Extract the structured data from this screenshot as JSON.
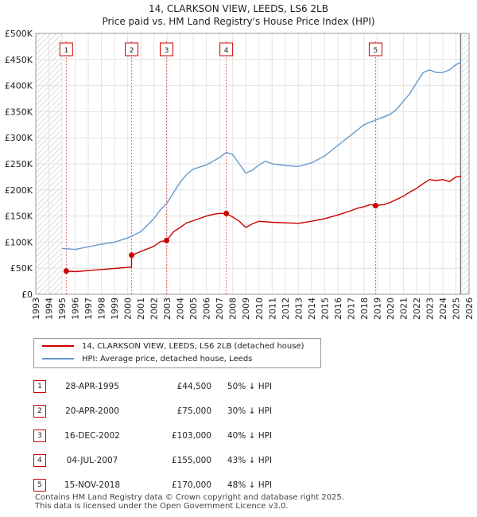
{
  "header": {
    "title": "14, CLARKSON VIEW, LEEDS, LS6 2LB",
    "subtitle": "Price paid vs. HM Land Registry's House Price Index (HPI)"
  },
  "colors": {
    "property": "#cc0000",
    "hpi": "#6699cc",
    "hatch": "#bbbbbb",
    "band": "#e8eef6"
  },
  "chart_data": {
    "type": "line",
    "title": "14, CLARKSON VIEW, LEEDS, LS6 2LB",
    "xlim": [
      1993,
      2026
    ],
    "ylim": [
      0,
      500000
    ],
    "x_ticks": [
      "1993",
      "1994",
      "1995",
      "1996",
      "1997",
      "1998",
      "1999",
      "2000",
      "2001",
      "2002",
      "2003",
      "2004",
      "2005",
      "2006",
      "2007",
      "2008",
      "2009",
      "2010",
      "2011",
      "2012",
      "2013",
      "2014",
      "2015",
      "2016",
      "2017",
      "2018",
      "2019",
      "2020",
      "2021",
      "2022",
      "2023",
      "2024",
      "2025",
      "2026"
    ],
    "y_ticks": [
      {
        "value": 0,
        "label": "£0"
      },
      {
        "value": 50000,
        "label": "£50K"
      },
      {
        "value": 100000,
        "label": "£100K"
      },
      {
        "value": 150000,
        "label": "£150K"
      },
      {
        "value": 200000,
        "label": "£200K"
      },
      {
        "value": 250000,
        "label": "£250K"
      },
      {
        "value": 300000,
        "label": "£300K"
      },
      {
        "value": 350000,
        "label": "£350K"
      },
      {
        "value": 400000,
        "label": "£400K"
      },
      {
        "value": 450000,
        "label": "£450K"
      },
      {
        "value": 500000,
        "label": "£500K"
      }
    ],
    "series": [
      {
        "name": "14, CLARKSON VIEW, LEEDS, LS6 2LB (detached house)",
        "x": [
          1995.32,
          1996.0,
          1997.0,
          1998.0,
          1999.0,
          2000.0,
          2000.29,
          2000.3,
          2001.0,
          2002.0,
          2002.5,
          2002.95,
          2002.96,
          2003.5,
          2004.0,
          2004.5,
          2005.0,
          2006.0,
          2006.5,
          2007.0,
          2007.5,
          2008.0,
          2008.5,
          2009.0,
          2009.5,
          2010.0,
          2011.0,
          2012.0,
          2013.0,
          2014.0,
          2015.0,
          2016.0,
          2017.0,
          2017.5,
          2018.0,
          2018.5,
          2018.87,
          2018.88,
          2019.5,
          2020.0,
          2021.0,
          2021.5,
          2022.0,
          2022.5,
          2023.0,
          2023.5,
          2024.0,
          2024.5,
          2025.0,
          2025.4
        ],
        "values": [
          44500,
          43500,
          45500,
          47500,
          49500,
          51500,
          52000,
          75000,
          82000,
          92000,
          101000,
          103000,
          103000,
          120000,
          128000,
          137000,
          141000,
          150000,
          153000,
          155000,
          155000,
          148000,
          140000,
          128000,
          135000,
          140000,
          138000,
          137000,
          136000,
          140000,
          145000,
          152000,
          160000,
          165000,
          168000,
          172000,
          170000,
          170000,
          172000,
          176000,
          188000,
          196000,
          203000,
          212000,
          220000,
          218000,
          220000,
          216000,
          225000,
          226000
        ]
      },
      {
        "name": "HPI: Average price, detached house, Leeds",
        "x": [
          1995.0,
          1996.0,
          1997.0,
          1998.0,
          1999.0,
          2000.0,
          2001.0,
          2002.0,
          2002.5,
          2003.0,
          2003.5,
          2004.0,
          2004.5,
          2005.0,
          2006.0,
          2007.0,
          2007.5,
          2008.0,
          2008.5,
          2009.0,
          2009.5,
          2010.0,
          2010.5,
          2011.0,
          2012.0,
          2013.0,
          2014.0,
          2015.0,
          2016.0,
          2017.0,
          2018.0,
          2019.0,
          2020.0,
          2020.5,
          2021.0,
          2021.5,
          2022.0,
          2022.5,
          2023.0,
          2023.5,
          2024.0,
          2024.5,
          2025.0,
          2025.4
        ],
        "values": [
          88000,
          86000,
          91000,
          96000,
          100000,
          108000,
          120000,
          145000,
          162000,
          175000,
          195000,
          215000,
          230000,
          240000,
          248000,
          262000,
          272000,
          268000,
          250000,
          232000,
          238000,
          248000,
          255000,
          250000,
          247000,
          245000,
          252000,
          265000,
          285000,
          305000,
          325000,
          335000,
          345000,
          355000,
          370000,
          385000,
          405000,
          425000,
          430000,
          425000,
          425000,
          430000,
          440000,
          445000
        ]
      }
    ],
    "sales": [
      {
        "n": "1",
        "year": 1995.32,
        "price": 44500
      },
      {
        "n": "2",
        "year": 2000.3,
        "price": 75000
      },
      {
        "n": "3",
        "year": 2002.96,
        "price": 103000
      },
      {
        "n": "4",
        "year": 2007.51,
        "price": 155000
      },
      {
        "n": "5",
        "year": 2018.88,
        "price": 170000
      }
    ],
    "hatch_start_until": 1995.0,
    "hatch_end_from": 2025.5
  },
  "legend": {
    "property": "14, CLARKSON VIEW, LEEDS, LS6 2LB (detached house)",
    "hpi": "HPI: Average price, detached house, Leeds"
  },
  "sales_table": [
    {
      "n": "1",
      "date": "28-APR-1995",
      "price": "£44,500",
      "hpi": "50% ↓ HPI"
    },
    {
      "n": "2",
      "date": "20-APR-2000",
      "price": "£75,000",
      "hpi": "30% ↓ HPI"
    },
    {
      "n": "3",
      "date": "16-DEC-2002",
      "price": "£103,000",
      "hpi": "40% ↓ HPI"
    },
    {
      "n": "4",
      "date": "04-JUL-2007",
      "price": "£155,000",
      "hpi": "43% ↓ HPI"
    },
    {
      "n": "5",
      "date": "15-NOV-2018",
      "price": "£170,000",
      "hpi": "48% ↓ HPI"
    }
  ],
  "footer": {
    "line1": "Contains HM Land Registry data © Crown copyright and database right 2025.",
    "line2": "This data is licensed under the Open Government Licence v3.0."
  }
}
